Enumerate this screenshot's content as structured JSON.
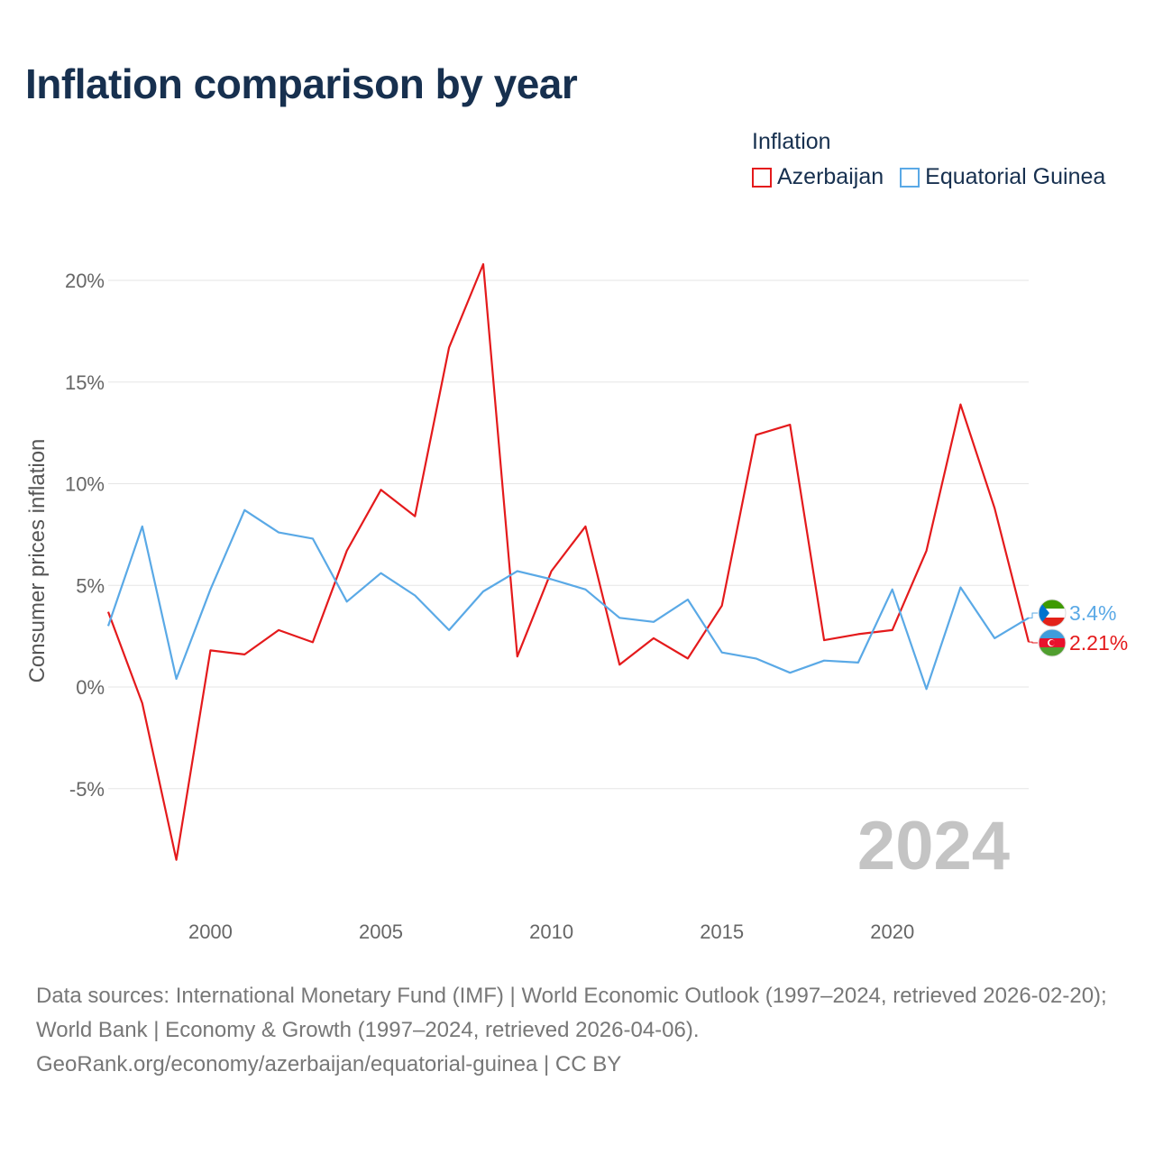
{
  "title": "Inflation comparison by year",
  "legend": {
    "title": "Inflation",
    "items": [
      {
        "label": "Azerbaijan",
        "color": "#e41a1c"
      },
      {
        "label": "Equatorial Guinea",
        "color": "#5aa9e6"
      }
    ]
  },
  "footer": {
    "sources": "Data sources: International Monetary Fund (IMF) | World Economic Outlook (1997–2024, retrieved 2026-02-20); World Bank | Economy & Growth (1997–2024, retrieved 2026-04-06).",
    "credit": "GeoRank.org/economy/azerbaijan/equatorial-guinea | CC BY"
  },
  "chart_data": {
    "type": "line",
    "title": "Inflation comparison by year",
    "xlabel": "",
    "ylabel": "Consumer prices inflation",
    "x": [
      1997,
      1998,
      1999,
      2000,
      2001,
      2002,
      2003,
      2004,
      2005,
      2006,
      2007,
      2008,
      2009,
      2010,
      2011,
      2012,
      2013,
      2014,
      2015,
      2016,
      2017,
      2018,
      2019,
      2020,
      2021,
      2022,
      2023,
      2024
    ],
    "series": [
      {
        "name": "Azerbaijan",
        "color": "#e41a1c",
        "values": [
          3.7,
          -0.8,
          -8.5,
          1.8,
          1.6,
          2.8,
          2.2,
          6.7,
          9.7,
          8.4,
          16.7,
          20.8,
          1.5,
          5.7,
          7.9,
          1.1,
          2.4,
          1.4,
          4.0,
          12.4,
          12.9,
          2.3,
          2.6,
          2.8,
          6.7,
          13.9,
          8.8,
          2.21
        ],
        "end_label": "2.21%"
      },
      {
        "name": "Equatorial Guinea",
        "color": "#5aa9e6",
        "values": [
          3.0,
          7.9,
          0.4,
          4.8,
          8.7,
          7.6,
          7.3,
          4.2,
          5.6,
          4.5,
          2.8,
          4.7,
          5.7,
          5.3,
          4.8,
          3.4,
          3.2,
          4.3,
          1.7,
          1.4,
          0.7,
          1.3,
          1.2,
          4.8,
          -0.1,
          4.9,
          2.4,
          3.4
        ],
        "end_label": "3.4%"
      }
    ],
    "yticks": [
      "20%",
      "15%",
      "10%",
      "5%",
      "0%",
      "-5%"
    ],
    "ytick_values": [
      20,
      15,
      10,
      5,
      0,
      -5
    ],
    "xticks": [
      "2000",
      "2005",
      "2010",
      "2015",
      "2020"
    ],
    "xtick_values": [
      2000,
      2005,
      2010,
      2015,
      2020
    ],
    "xlim": [
      1997,
      2024
    ],
    "ylim": [
      -9.5,
      22
    ],
    "grid": true,
    "year_watermark": "2024"
  }
}
